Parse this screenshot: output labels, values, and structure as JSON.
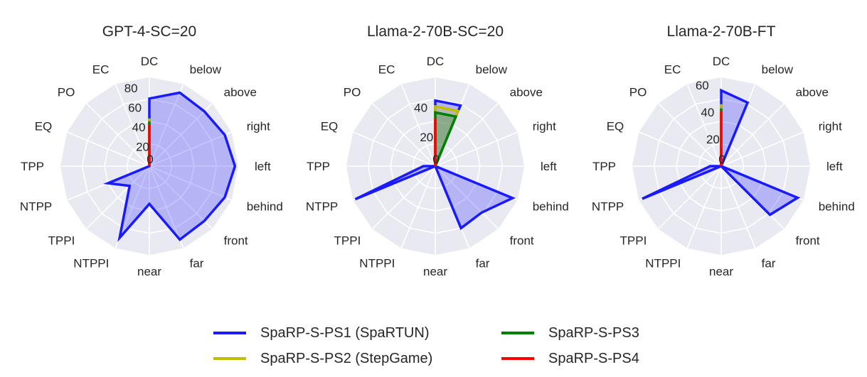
{
  "chart_data": [
    {
      "type": "radar",
      "title": "GPT-4-SC=20",
      "categories": [
        "DC",
        "below",
        "above",
        "right",
        "left",
        "behind",
        "front",
        "far",
        "near",
        "NTPPI",
        "TPPI",
        "NTPP",
        "TPP",
        "EQ",
        "PO",
        "EC"
      ],
      "rticks": [
        "20",
        "40",
        "60",
        "80"
      ],
      "rmax": 90,
      "series": [
        {
          "name": "SpaRP-S-PS1 (SpaRTUN)",
          "color": "#1a1aff",
          "values": [
            68,
            80,
            78,
            82,
            86,
            82,
            78,
            80,
            38,
            78,
            28,
            45,
            0,
            0,
            0,
            0
          ]
        },
        {
          "name": "SpaRP-S-PS2 (StepGame)",
          "color": "#bfbf00",
          "values": [
            48,
            0,
            0,
            0,
            0,
            0,
            0,
            0,
            0,
            0,
            0,
            0,
            0,
            0,
            0,
            0
          ]
        },
        {
          "name": "SpaRP-S-PS3",
          "color": "#008000",
          "values": [
            45,
            0,
            0,
            0,
            0,
            0,
            0,
            0,
            0,
            0,
            0,
            0,
            0,
            0,
            0,
            0
          ]
        },
        {
          "name": "SpaRP-S-PS4",
          "color": "#ff0000",
          "values": [
            42,
            0,
            0,
            0,
            0,
            0,
            0,
            0,
            0,
            0,
            0,
            0,
            0,
            0,
            0,
            0
          ]
        }
      ]
    },
    {
      "type": "radar",
      "title": "Llama-2-70B-SC=20",
      "categories": [
        "DC",
        "below",
        "above",
        "right",
        "left",
        "behind",
        "front",
        "far",
        "near",
        "NTPPI",
        "TPPI",
        "NTPP",
        "TPP",
        "EQ",
        "PO",
        "EC"
      ],
      "rticks": [
        "20",
        "40"
      ],
      "rmax": 60,
      "series": [
        {
          "name": "SpaRP-S-PS1 (SpaRTUN)",
          "color": "#1a1aff",
          "values": [
            44,
            44,
            0,
            0,
            0,
            56,
            44,
            45,
            0,
            0,
            0,
            58,
            8,
            0,
            0,
            0
          ]
        },
        {
          "name": "SpaRP-S-PS2 (StepGame)",
          "color": "#bfbf00",
          "values": [
            40,
            40,
            0,
            0,
            0,
            0,
            0,
            0,
            0,
            0,
            0,
            0,
            0,
            0,
            0,
            0
          ]
        },
        {
          "name": "SpaRP-S-PS3",
          "color": "#008000",
          "values": [
            36,
            36,
            0,
            0,
            0,
            0,
            0,
            0,
            0,
            0,
            0,
            0,
            0,
            0,
            0,
            0
          ]
        },
        {
          "name": "SpaRP-S-PS4",
          "color": "#ff0000",
          "values": [
            32,
            0,
            0,
            0,
            0,
            0,
            0,
            0,
            0,
            0,
            0,
            0,
            0,
            0,
            0,
            0
          ]
        }
      ]
    },
    {
      "type": "radar",
      "title": "Llama-2-70B-FT",
      "categories": [
        "DC",
        "below",
        "above",
        "right",
        "left",
        "behind",
        "front",
        "far",
        "near",
        "NTPPI",
        "TPPI",
        "NTPP",
        "TPP",
        "EQ",
        "PO",
        "EC"
      ],
      "rticks": [
        "20",
        "40",
        "60"
      ],
      "rmax": 65,
      "series": [
        {
          "name": "SpaRP-S-PS1 (SpaRTUN)",
          "color": "#1a1aff",
          "values": [
            55,
            50,
            0,
            0,
            0,
            60,
            50,
            0,
            0,
            0,
            0,
            62,
            8,
            0,
            0,
            0
          ]
        },
        {
          "name": "SpaRP-S-PS2 (StepGame)",
          "color": "#bfbf00",
          "values": [
            45,
            0,
            0,
            0,
            0,
            0,
            0,
            0,
            0,
            0,
            0,
            0,
            0,
            0,
            0,
            0
          ]
        },
        {
          "name": "SpaRP-S-PS3",
          "color": "#008000",
          "values": [
            42,
            0,
            0,
            0,
            0,
            0,
            0,
            0,
            0,
            0,
            0,
            0,
            0,
            0,
            0,
            0
          ]
        },
        {
          "name": "SpaRP-S-PS4",
          "color": "#ff0000",
          "values": [
            40,
            0,
            0,
            0,
            0,
            0,
            0,
            0,
            0,
            0,
            0,
            0,
            0,
            0,
            0,
            0
          ]
        }
      ]
    }
  ],
  "legend": {
    "items": [
      {
        "label": "SpaRP-S-PS1 (SpaRTUN)",
        "color": "#1a1aff"
      },
      {
        "label": "SpaRP-S-PS3",
        "color": "#008000"
      },
      {
        "label": "SpaRP-S-PS2 (StepGame)",
        "color": "#bfbf00"
      },
      {
        "label": "SpaRP-S-PS4",
        "color": "#ff0000"
      }
    ]
  }
}
